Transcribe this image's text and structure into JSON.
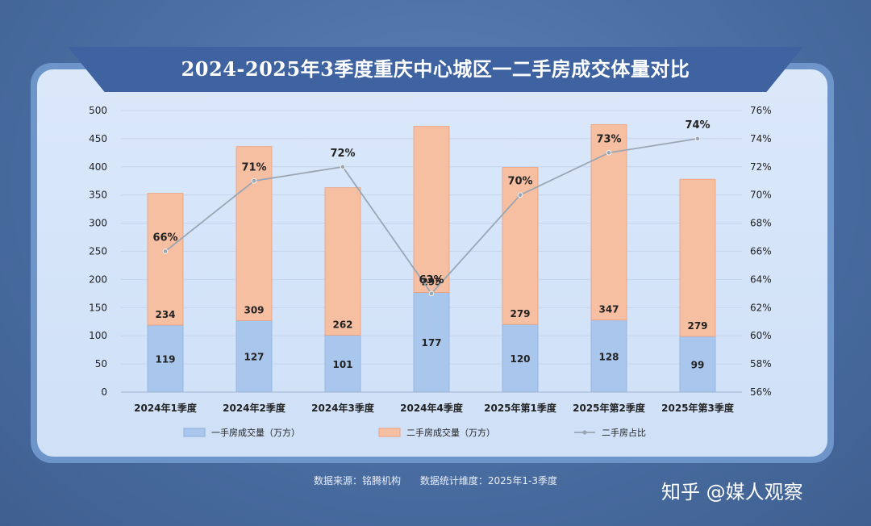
{
  "header": {
    "title": "2024-2025年3季度重庆中心城区一二手房成交体量对比"
  },
  "chart_data": {
    "type": "bar",
    "stacked": true,
    "categories": [
      "2024年1季度",
      "2024年2季度",
      "2024年3季度",
      "2024年4季度",
      "2025年第1季度",
      "2025年第2季度",
      "2025年第3季度"
    ],
    "series": [
      {
        "name": "一手房成交量（万方）",
        "type": "bar",
        "axis": "left",
        "color": "#a9c6ec",
        "values": [
          119,
          127,
          101,
          177,
          120,
          128,
          99
        ]
      },
      {
        "name": "二手房成交量（万方）",
        "type": "bar",
        "axis": "left",
        "color": "#f7bfa2",
        "values": [
          234,
          309,
          262,
          295,
          279,
          347,
          279
        ]
      },
      {
        "name": "二手房占比",
        "type": "line",
        "axis": "right",
        "color": "#9aa6b4",
        "values": [
          66,
          71,
          72,
          63,
          70,
          73,
          74
        ],
        "value_suffix": "%"
      }
    ],
    "y_left": {
      "min": 0,
      "max": 500,
      "step": 50
    },
    "y_right": {
      "min": 56,
      "max": 76,
      "step": 2,
      "suffix": "%"
    },
    "legend_position": "bottom",
    "grid": true
  },
  "footer": {
    "source": "数据来源：铭腾机构",
    "dimension": "数据统计维度：2025年1-3季度"
  },
  "brand": "知乎 @媒人观察"
}
